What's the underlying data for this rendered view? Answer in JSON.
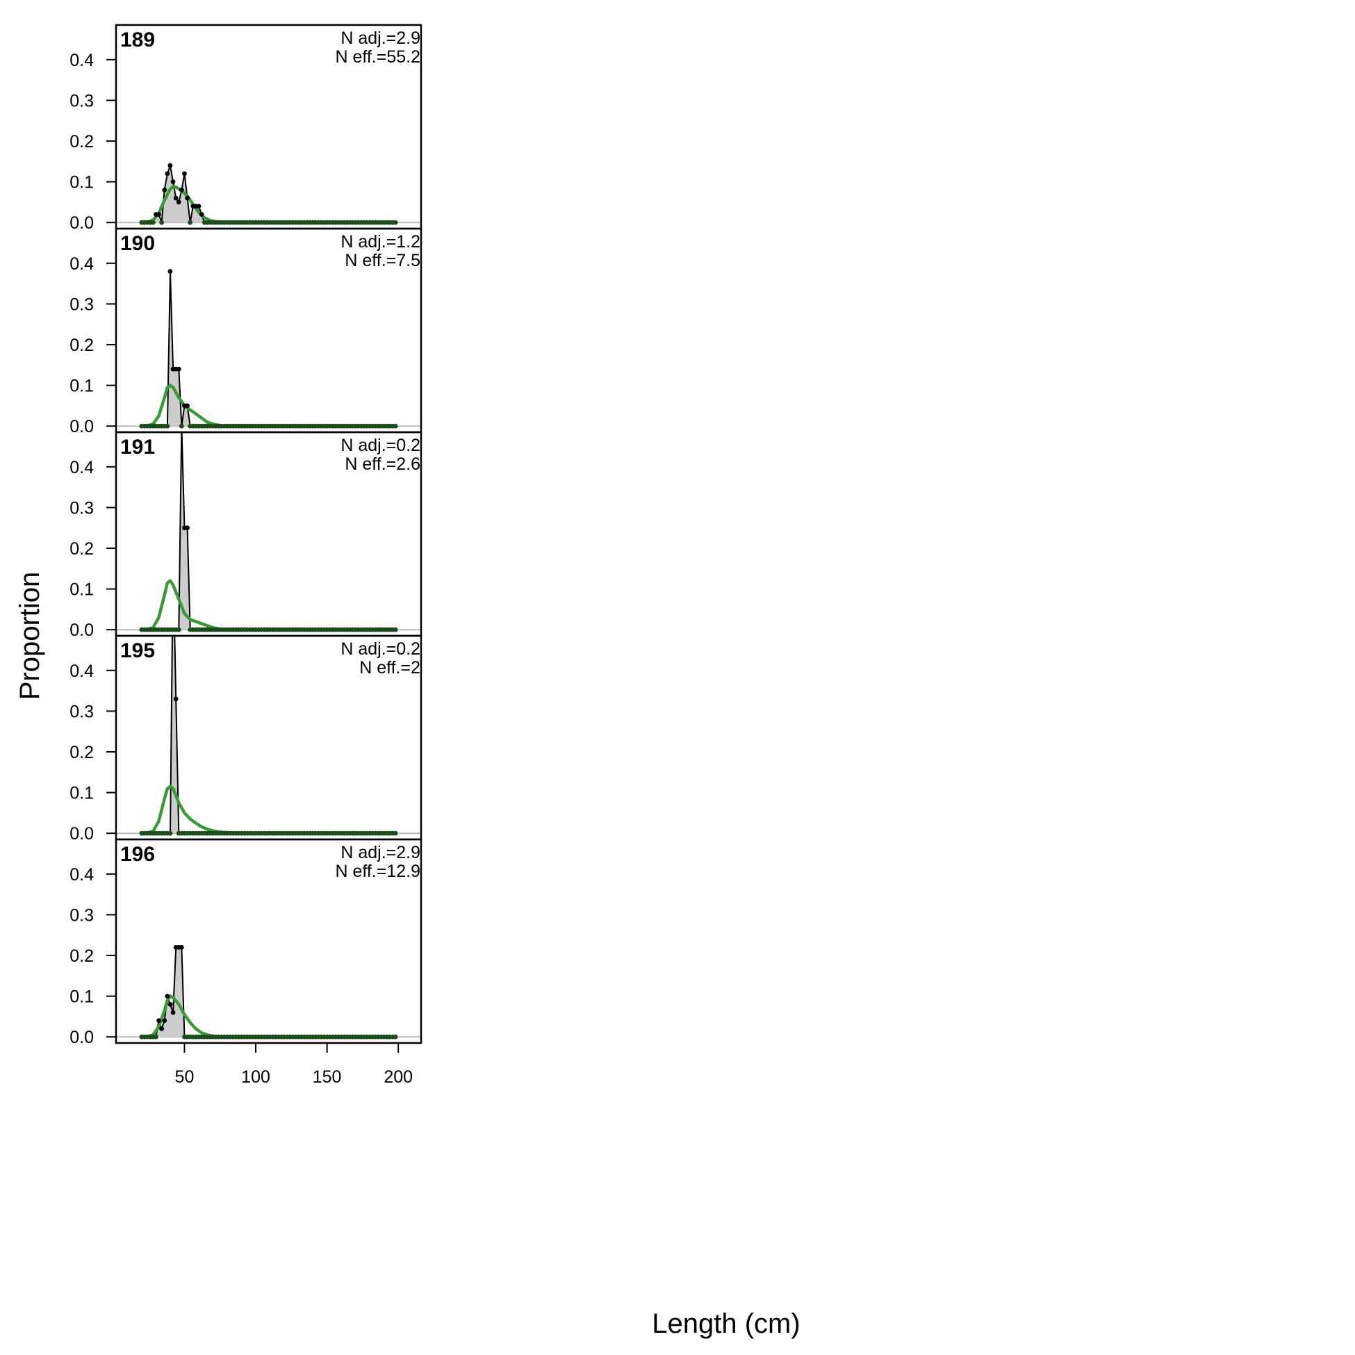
{
  "colors": {
    "observed_fill": "#cccccc",
    "observed_line": "#000000",
    "expected_line": "#3a9a3a",
    "zero_line": "#bbbbbb",
    "frame": "#000000"
  },
  "chart_data": {
    "type": "area",
    "xlabel": "Length (cm)",
    "ylabel": "Proportion",
    "xlim": [
      2,
      216
    ],
    "ylim": [
      -0.015,
      0.485
    ],
    "x_ticks": [
      50,
      100,
      150,
      200
    ],
    "x_tick_labels": [
      "50",
      "100",
      "150",
      "200"
    ],
    "y_ticks": [
      0,
      0.1,
      0.2,
      0.3,
      0.4
    ],
    "y_tick_labels": [
      "0.0",
      "0.1",
      "0.2",
      "0.3",
      "0.4"
    ],
    "length_bins": {
      "from": 20,
      "to": 198,
      "step": 2
    },
    "grid": false,
    "panels": [
      {
        "label": "189",
        "n_adj": "N adj.=2.9",
        "n_eff": "N eff.=55.2",
        "observed": [
          [
            20,
            0
          ],
          [
            22,
            0
          ],
          [
            24,
            0
          ],
          [
            26,
            0
          ],
          [
            28,
            0
          ],
          [
            30,
            0.02
          ],
          [
            32,
            0.02
          ],
          [
            34,
            0
          ],
          [
            36,
            0.08
          ],
          [
            38,
            0.12
          ],
          [
            40,
            0.14
          ],
          [
            42,
            0.1
          ],
          [
            44,
            0.06
          ],
          [
            46,
            0.05
          ],
          [
            48,
            0.08
          ],
          [
            50,
            0.12
          ],
          [
            52,
            0.06
          ],
          [
            54,
            0
          ],
          [
            56,
            0.04
          ],
          [
            58,
            0.04
          ],
          [
            60,
            0.04
          ],
          [
            62,
            0.02
          ],
          [
            64,
            0
          ]
        ],
        "expected": [
          [
            20,
            0
          ],
          [
            24,
            0.001
          ],
          [
            28,
            0.006
          ],
          [
            32,
            0.022
          ],
          [
            36,
            0.055
          ],
          [
            40,
            0.082
          ],
          [
            42,
            0.088
          ],
          [
            44,
            0.087
          ],
          [
            48,
            0.078
          ],
          [
            52,
            0.065
          ],
          [
            56,
            0.045
          ],
          [
            60,
            0.025
          ],
          [
            64,
            0.012
          ],
          [
            68,
            0.005
          ],
          [
            72,
            0.002
          ],
          [
            80,
            0
          ],
          [
            198,
            0
          ]
        ]
      },
      {
        "label": "190",
        "n_adj": "N adj.=1.2",
        "n_eff": "N eff.=7.5",
        "observed": [
          [
            20,
            0
          ],
          [
            22,
            0
          ],
          [
            24,
            0
          ],
          [
            26,
            0
          ],
          [
            28,
            0
          ],
          [
            30,
            0
          ],
          [
            32,
            0
          ],
          [
            34,
            0
          ],
          [
            36,
            0
          ],
          [
            38,
            0
          ],
          [
            40,
            0.38
          ],
          [
            42,
            0.14
          ],
          [
            44,
            0.14
          ],
          [
            46,
            0.14
          ],
          [
            48,
            0
          ],
          [
            50,
            0.05
          ],
          [
            52,
            0.05
          ],
          [
            54,
            0
          ]
        ],
        "expected": [
          [
            20,
            0
          ],
          [
            24,
            0.001
          ],
          [
            28,
            0.005
          ],
          [
            32,
            0.025
          ],
          [
            36,
            0.07
          ],
          [
            38,
            0.095
          ],
          [
            40,
            0.1
          ],
          [
            42,
            0.095
          ],
          [
            46,
            0.07
          ],
          [
            50,
            0.05
          ],
          [
            54,
            0.04
          ],
          [
            58,
            0.03
          ],
          [
            62,
            0.02
          ],
          [
            66,
            0.01
          ],
          [
            70,
            0.005
          ],
          [
            76,
            0.001
          ],
          [
            84,
            0
          ],
          [
            198,
            0
          ]
        ]
      },
      {
        "label": "191",
        "n_adj": "N adj.=0.2",
        "n_eff": "N eff.=2.6",
        "observed": [
          [
            20,
            0
          ],
          [
            22,
            0
          ],
          [
            24,
            0
          ],
          [
            26,
            0
          ],
          [
            28,
            0
          ],
          [
            30,
            0
          ],
          [
            32,
            0
          ],
          [
            34,
            0
          ],
          [
            36,
            0
          ],
          [
            38,
            0
          ],
          [
            40,
            0
          ],
          [
            42,
            0
          ],
          [
            44,
            0
          ],
          [
            46,
            0
          ],
          [
            48,
            0.5
          ],
          [
            50,
            0.25
          ],
          [
            52,
            0.25
          ],
          [
            54,
            0
          ]
        ],
        "expected": [
          [
            20,
            0
          ],
          [
            24,
            0.001
          ],
          [
            28,
            0.005
          ],
          [
            32,
            0.03
          ],
          [
            36,
            0.085
          ],
          [
            38,
            0.115
          ],
          [
            40,
            0.12
          ],
          [
            42,
            0.11
          ],
          [
            46,
            0.075
          ],
          [
            50,
            0.04
          ],
          [
            54,
            0.025
          ],
          [
            58,
            0.02
          ],
          [
            62,
            0.015
          ],
          [
            66,
            0.01
          ],
          [
            70,
            0.005
          ],
          [
            76,
            0.001
          ],
          [
            84,
            0
          ],
          [
            198,
            0
          ]
        ]
      },
      {
        "label": "195",
        "n_adj": "N adj.=0.2",
        "n_eff": "N eff.=2",
        "observed": [
          [
            20,
            0
          ],
          [
            22,
            0
          ],
          [
            24,
            0
          ],
          [
            26,
            0
          ],
          [
            28,
            0
          ],
          [
            30,
            0
          ],
          [
            32,
            0
          ],
          [
            34,
            0
          ],
          [
            36,
            0
          ],
          [
            38,
            0
          ],
          [
            40,
            0
          ],
          [
            42,
            0.67
          ],
          [
            44,
            0.33
          ],
          [
            46,
            0
          ],
          [
            48,
            0
          ]
        ],
        "expected": [
          [
            20,
            0
          ],
          [
            24,
            0.001
          ],
          [
            28,
            0.005
          ],
          [
            32,
            0.03
          ],
          [
            36,
            0.085
          ],
          [
            38,
            0.11
          ],
          [
            40,
            0.115
          ],
          [
            42,
            0.11
          ],
          [
            46,
            0.075
          ],
          [
            50,
            0.05
          ],
          [
            54,
            0.035
          ],
          [
            58,
            0.025
          ],
          [
            62,
            0.016
          ],
          [
            66,
            0.01
          ],
          [
            70,
            0.006
          ],
          [
            76,
            0.003
          ],
          [
            84,
            0.001
          ],
          [
            92,
            0
          ],
          [
            198,
            0
          ]
        ]
      },
      {
        "label": "196",
        "n_adj": "N adj.=2.9",
        "n_eff": "N eff.=12.9",
        "observed": [
          [
            20,
            0
          ],
          [
            22,
            0
          ],
          [
            24,
            0
          ],
          [
            26,
            0
          ],
          [
            28,
            0
          ],
          [
            30,
            0
          ],
          [
            32,
            0.04
          ],
          [
            34,
            0.02
          ],
          [
            36,
            0.04
          ],
          [
            38,
            0.1
          ],
          [
            40,
            0.08
          ],
          [
            42,
            0.06
          ],
          [
            44,
            0.22
          ],
          [
            46,
            0.22
          ],
          [
            48,
            0.22
          ],
          [
            50,
            0
          ],
          [
            52,
            0
          ]
        ],
        "expected": [
          [
            20,
            0
          ],
          [
            24,
            0.001
          ],
          [
            28,
            0.005
          ],
          [
            32,
            0.025
          ],
          [
            36,
            0.065
          ],
          [
            38,
            0.09
          ],
          [
            40,
            0.1
          ],
          [
            42,
            0.097
          ],
          [
            46,
            0.08
          ],
          [
            50,
            0.055
          ],
          [
            54,
            0.035
          ],
          [
            58,
            0.02
          ],
          [
            62,
            0.01
          ],
          [
            66,
            0.005
          ],
          [
            72,
            0.001
          ],
          [
            80,
            0
          ],
          [
            198,
            0
          ]
        ]
      }
    ]
  }
}
